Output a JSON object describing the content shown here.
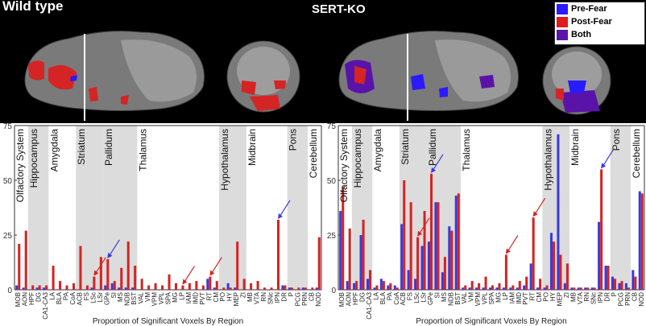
{
  "header": {
    "left_title": "Wild type",
    "center_title": "SERT-KO"
  },
  "legend": [
    {
      "label": "Pre-Fear",
      "color": "#2a1bff"
    },
    {
      "label": "Post-Fear",
      "color": "#e01b1b"
    },
    {
      "label": "Both",
      "color": "#5a13a8"
    }
  ],
  "colors": {
    "pre": "#3a3adf",
    "post": "#d42424",
    "band": "#dcdcdc"
  },
  "chart_data": [
    {
      "type": "bar",
      "title": "Wild type",
      "xlabel": "Proportion of Significant Voxels By Region",
      "ylabel": "",
      "ylim": [
        0,
        75
      ],
      "yticks": [
        0,
        25,
        50,
        75
      ],
      "categories": [
        "MOB",
        "AON",
        "HPF",
        "DG",
        "CA1-CA3",
        "LA",
        "BLA",
        "PA",
        "CoA",
        "ACB",
        "FS",
        "LSc",
        "LSr",
        "GPe",
        "SI",
        "MS",
        "NDB",
        "BST",
        "VAL",
        "VM",
        "VPM",
        "VPL",
        "SPA",
        "MG",
        "LP",
        "IAM",
        "IMD",
        "PVT",
        "RT",
        "CM",
        "PO",
        "HY",
        "MEP",
        "ZI",
        "MB",
        "VTA",
        "RN",
        "SNc",
        "IPN",
        "DR",
        "P",
        "PCG",
        "PRN",
        "CB",
        "NOD"
      ],
      "series": [
        {
          "name": "Pre-Fear",
          "values": [
            2,
            1,
            0,
            1,
            1,
            0,
            0,
            0,
            0,
            0,
            0,
            1,
            0,
            2,
            3,
            1,
            1,
            1,
            0,
            0,
            0,
            0,
            0,
            0,
            0,
            0,
            0,
            0,
            5,
            1,
            0,
            3,
            1,
            0,
            0,
            0,
            0,
            0,
            0,
            2,
            1,
            0,
            1,
            0,
            1
          ]
        },
        {
          "name": "Post-Fear",
          "values": [
            21,
            27,
            2,
            2,
            2,
            11,
            4,
            2,
            3,
            20,
            2,
            6,
            15,
            14,
            4,
            10,
            22,
            11,
            5,
            2,
            3,
            2,
            7,
            3,
            2,
            3,
            4,
            2,
            6,
            4,
            1,
            1,
            22,
            5,
            3,
            4,
            1,
            1,
            32,
            2,
            1,
            1,
            1,
            1,
            24
          ]
        }
      ],
      "bands": [
        {
          "label": "Olfactory System",
          "from": "MOB",
          "to": "AON",
          "shaded": false
        },
        {
          "label": "Hippocampus",
          "from": "HPF",
          "to": "CA1-CA3",
          "shaded": true
        },
        {
          "label": "Amygdala",
          "from": "LA",
          "to": "CoA",
          "shaded": false
        },
        {
          "label": "Striatum",
          "from": "ACB",
          "to": "LSr",
          "shaded": true
        },
        {
          "label": "Pallidum",
          "from": "GPe",
          "to": "BST",
          "shaded": true
        },
        {
          "label": "Thalamus",
          "from": "VAL",
          "to": "CM",
          "shaded": false
        },
        {
          "label": "Hypothalamus",
          "from": "PO",
          "to": "ZI",
          "shaded": true
        },
        {
          "label": "Midbrain",
          "from": "MB",
          "to": "DR",
          "shaded": false
        },
        {
          "label": "Pons",
          "from": "P",
          "to": "PRN",
          "shaded": true
        },
        {
          "label": "Cerebellum",
          "from": "CB",
          "to": "NOD",
          "shaded": false
        }
      ],
      "arrows": [
        {
          "at": "LSc",
          "color": "#d42424"
        },
        {
          "at": "GPe",
          "color": "#3a3adf"
        },
        {
          "at": "LP",
          "color": "#d42424"
        },
        {
          "at": "RT",
          "color": "#d42424"
        },
        {
          "at": "IPN",
          "color": "#3a3adf"
        }
      ]
    },
    {
      "type": "bar",
      "title": "SERT-KO",
      "xlabel": "Proportion of Significant Voxels By Region",
      "ylabel": "",
      "ylim": [
        0,
        75
      ],
      "yticks": [
        0,
        25,
        50,
        75
      ],
      "categories": [
        "MOB",
        "AON",
        "HPF",
        "DG",
        "CA1-CA3",
        "LA",
        "BLA",
        "PA",
        "CoA",
        "ACB",
        "FS",
        "LSc",
        "LSr",
        "GPe",
        "SI",
        "MS",
        "NDB",
        "BST",
        "VAL",
        "VM",
        "VPM",
        "VPL",
        "SPA",
        "MG",
        "LP",
        "IAM",
        "IMD",
        "PVT",
        "RT",
        "CM",
        "PO",
        "HY",
        "MEP",
        "ZI",
        "MB",
        "VTA",
        "RN",
        "SNc",
        "IPN",
        "DR",
        "P",
        "PCG",
        "PRN",
        "CB",
        "NOD"
      ],
      "series": [
        {
          "name": "Pre-Fear",
          "values": [
            36,
            4,
            3,
            25,
            5,
            1,
            5,
            2,
            2,
            30,
            9,
            5,
            20,
            22,
            40,
            8,
            29,
            43,
            1,
            1,
            1,
            1,
            1,
            1,
            1,
            1,
            1,
            2,
            12,
            1,
            1,
            26,
            71,
            3,
            1,
            1,
            1,
            1,
            31,
            11,
            6,
            3,
            3,
            9,
            45
          ]
        },
        {
          "name": "Post-Fear",
          "values": [
            47,
            28,
            4,
            32,
            9,
            2,
            4,
            3,
            1,
            50,
            40,
            24,
            36,
            53,
            40,
            15,
            27,
            44,
            2,
            4,
            3,
            6,
            2,
            3,
            16,
            2,
            4,
            6,
            33,
            5,
            2,
            22,
            16,
            12,
            1,
            1,
            1,
            1,
            55,
            11,
            5,
            4,
            1,
            6,
            44
          ]
        }
      ],
      "bands": [
        {
          "label": "Olfactory System",
          "from": "MOB",
          "to": "AON",
          "shaded": false
        },
        {
          "label": "Hippocampus",
          "from": "HPF",
          "to": "CA1-CA3",
          "shaded": true
        },
        {
          "label": "Amygdala",
          "from": "LA",
          "to": "CoA",
          "shaded": false
        },
        {
          "label": "Striatum",
          "from": "ACB",
          "to": "LSr",
          "shaded": true
        },
        {
          "label": "Pallidum",
          "from": "GPe",
          "to": "BST",
          "shaded": true
        },
        {
          "label": "Thalamus",
          "from": "VAL",
          "to": "CM",
          "shaded": false
        },
        {
          "label": "Hypothalamus",
          "from": "PO",
          "to": "ZI",
          "shaded": true
        },
        {
          "label": "Midbrain",
          "from": "MB",
          "to": "DR",
          "shaded": false
        },
        {
          "label": "Pons",
          "from": "P",
          "to": "PRN",
          "shaded": true
        },
        {
          "label": "Cerebellum",
          "from": "CB",
          "to": "NOD",
          "shaded": false
        }
      ],
      "arrows": [
        {
          "at": "LSc",
          "color": "#d42424"
        },
        {
          "at": "GPe",
          "color": "#3a3adf"
        },
        {
          "at": "LP",
          "color": "#d42424"
        },
        {
          "at": "RT",
          "color": "#d42424"
        },
        {
          "at": "IPN",
          "color": "#3a3adf"
        }
      ]
    }
  ]
}
